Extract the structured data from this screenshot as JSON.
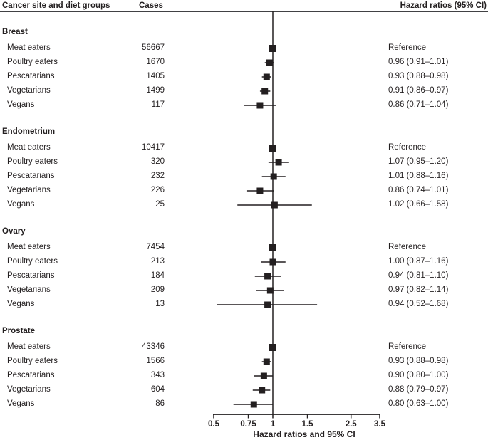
{
  "header": {
    "col_site": "Cancer site and diet groups",
    "col_cases": "Cases",
    "col_hr": "Hazard ratios (95% CI)"
  },
  "chart_data": {
    "type": "forest",
    "scale": "log",
    "xlabel": "Hazard ratios and 95% CI",
    "x_range": [
      0.5,
      3.5
    ],
    "x_ticks": [
      0.5,
      0.75,
      1,
      1.5,
      2.5,
      3.5
    ],
    "x_tick_labels": [
      "0.5",
      "0.75",
      "1",
      "1.5",
      "2.5",
      "3.5"
    ],
    "reference_line": 1,
    "marker_color": "#231f20",
    "groups": [
      {
        "name": "Breast",
        "rows": [
          {
            "label": "Meat eaters",
            "cases": "56667",
            "hr": 1.0,
            "lo": null,
            "hi": null,
            "text": "Reference",
            "reference": true
          },
          {
            "label": "Poultry eaters",
            "cases": "1670",
            "hr": 0.96,
            "lo": 0.91,
            "hi": 1.01,
            "text": "0.96 (0.91–1.01)",
            "reference": false
          },
          {
            "label": "Pescatarians",
            "cases": "1405",
            "hr": 0.93,
            "lo": 0.88,
            "hi": 0.98,
            "text": "0.93 (0.88–0.98)",
            "reference": false
          },
          {
            "label": "Vegetarians",
            "cases": "1499",
            "hr": 0.91,
            "lo": 0.86,
            "hi": 0.97,
            "text": "0.91 (0.86–0.97)",
            "reference": false
          },
          {
            "label": "Vegans",
            "cases": "117",
            "hr": 0.86,
            "lo": 0.71,
            "hi": 1.04,
            "text": "0.86 (0.71–1.04)",
            "reference": false
          }
        ]
      },
      {
        "name": "Endometrium",
        "rows": [
          {
            "label": "Meat eaters",
            "cases": "10417",
            "hr": 1.0,
            "lo": null,
            "hi": null,
            "text": "Reference",
            "reference": true
          },
          {
            "label": "Poultry eaters",
            "cases": "320",
            "hr": 1.07,
            "lo": 0.95,
            "hi": 1.2,
            "text": "1.07 (0.95–1.20)",
            "reference": false
          },
          {
            "label": "Pescatarians",
            "cases": "232",
            "hr": 1.01,
            "lo": 0.88,
            "hi": 1.16,
            "text": "1.01 (0.88–1.16)",
            "reference": false
          },
          {
            "label": "Vegetarians",
            "cases": "226",
            "hr": 0.86,
            "lo": 0.74,
            "hi": 1.01,
            "text": "0.86 (0.74–1.01)",
            "reference": false
          },
          {
            "label": "Vegans",
            "cases": "25",
            "hr": 1.02,
            "lo": 0.66,
            "hi": 1.58,
            "text": "1.02 (0.66–1.58)",
            "reference": false
          }
        ]
      },
      {
        "name": "Ovary",
        "rows": [
          {
            "label": "Meat eaters",
            "cases": "7454",
            "hr": 1.0,
            "lo": null,
            "hi": null,
            "text": "Reference",
            "reference": true
          },
          {
            "label": "Poultry eaters",
            "cases": "213",
            "hr": 1.0,
            "lo": 0.87,
            "hi": 1.16,
            "text": "1.00 (0.87–1.16)",
            "reference": false
          },
          {
            "label": "Pescatarians",
            "cases": "184",
            "hr": 0.94,
            "lo": 0.81,
            "hi": 1.1,
            "text": "0.94 (0.81–1.10)",
            "reference": false
          },
          {
            "label": "Vegetarians",
            "cases": "209",
            "hr": 0.97,
            "lo": 0.82,
            "hi": 1.14,
            "text": "0.97 (0.82–1.14)",
            "reference": false
          },
          {
            "label": "Vegans",
            "cases": "13",
            "hr": 0.94,
            "lo": 0.52,
            "hi": 1.68,
            "text": "0.94 (0.52–1.68)",
            "reference": false
          }
        ]
      },
      {
        "name": "Prostate",
        "rows": [
          {
            "label": "Meat eaters",
            "cases": "43346",
            "hr": 1.0,
            "lo": null,
            "hi": null,
            "text": "Reference",
            "reference": true
          },
          {
            "label": "Poultry eaters",
            "cases": "1566",
            "hr": 0.93,
            "lo": 0.88,
            "hi": 0.98,
            "text": "0.93 (0.88–0.98)",
            "reference": false
          },
          {
            "label": "Pescatarians",
            "cases": "343",
            "hr": 0.9,
            "lo": 0.8,
            "hi": 1.0,
            "text": "0.90 (0.80–1.00)",
            "reference": false
          },
          {
            "label": "Vegetarians",
            "cases": "604",
            "hr": 0.88,
            "lo": 0.79,
            "hi": 0.97,
            "text": "0.88 (0.79–0.97)",
            "reference": false
          },
          {
            "label": "Vegans",
            "cases": "86",
            "hr": 0.8,
            "lo": 0.63,
            "hi": 1.0,
            "text": "0.80 (0.63–1.00)",
            "reference": false
          }
        ]
      }
    ]
  }
}
